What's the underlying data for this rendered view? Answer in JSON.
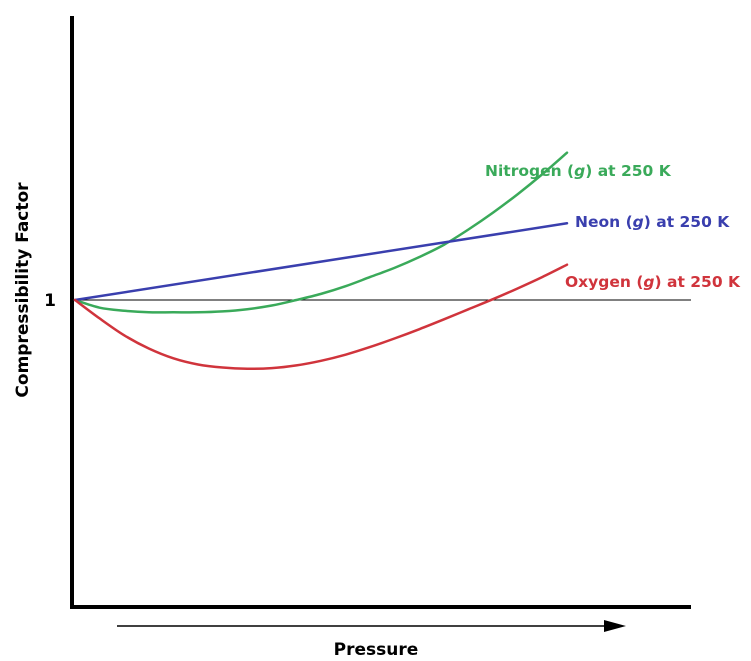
{
  "chart_data": {
    "type": "line",
    "title": "",
    "xlabel": "Pressure",
    "ylabel": "Compressibility Factor",
    "xlim": [
      0,
      10
    ],
    "ylim": [
      0,
      2
    ],
    "grid": false,
    "y_ticks": [
      {
        "value": 1,
        "label": "1"
      }
    ],
    "reference_line": {
      "y": 1
    },
    "series": [
      {
        "name": "Nitrogen (g) at 250 K",
        "label_parts": [
          "Nitrogen (",
          "g",
          ") at 250 K"
        ],
        "color": "#3aaa5a",
        "x": [
          0,
          0.5,
          1,
          1.5,
          2,
          2.5,
          3,
          3.5,
          4,
          4.5,
          5,
          5.5,
          6,
          6.5,
          7,
          7.5,
          8,
          8.5,
          9,
          9.5,
          10
        ],
        "y": [
          1.0,
          0.975,
          0.965,
          0.96,
          0.96,
          0.96,
          0.963,
          0.97,
          0.982,
          1.0,
          1.02,
          1.045,
          1.075,
          1.105,
          1.14,
          1.18,
          1.23,
          1.285,
          1.345,
          1.41,
          1.48
        ]
      },
      {
        "name": "Neon (g) at 250 K",
        "label_parts": [
          "Neon (",
          "g",
          ") at 250 K"
        ],
        "color": "#3a3fae",
        "x": [
          0,
          10
        ],
        "y": [
          1.0,
          1.25
        ]
      },
      {
        "name": "Oxygen (g) at 250 K",
        "label_parts": [
          "Oxygen (",
          "g",
          ") at 250 K"
        ],
        "color": "#d0343c",
        "x": [
          0,
          0.5,
          1,
          1.5,
          2,
          2.5,
          3,
          3.5,
          4,
          4.5,
          5,
          5.5,
          6,
          6.5,
          7,
          7.5,
          8,
          8.5,
          9,
          9.5,
          10
        ],
        "y": [
          1.0,
          0.94,
          0.885,
          0.842,
          0.81,
          0.79,
          0.78,
          0.776,
          0.778,
          0.787,
          0.802,
          0.822,
          0.847,
          0.875,
          0.905,
          0.937,
          0.97,
          1.003,
          1.038,
          1.075,
          1.115
        ]
      }
    ],
    "pressure_arrow": true
  }
}
